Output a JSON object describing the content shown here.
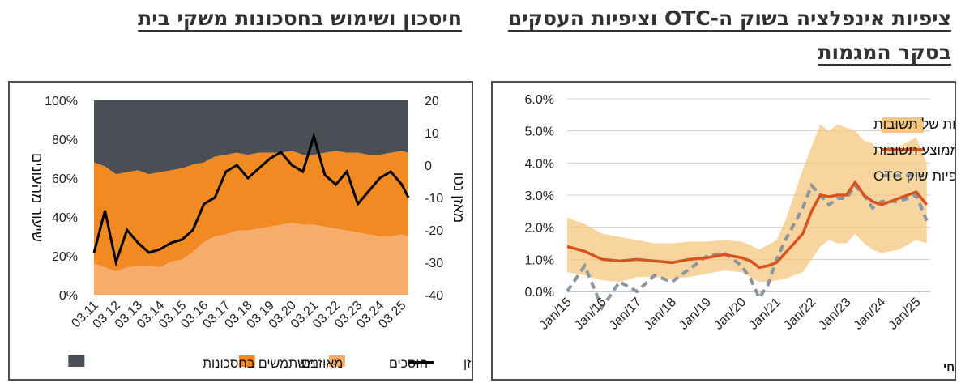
{
  "titles": {
    "right": "ציפיות אינפלציה בשוק ה-OTC וציפיות העסקים בסקר המגמות",
    "left": "חיסכון ושימוש בחסכונות משקי בית"
  },
  "colors": {
    "band": "#f5c77e",
    "band_dark": "#f0b050",
    "avg_line": "#d9531e",
    "otc_line": "#8c96a0",
    "users": "#4a4f55",
    "balanced": "#f28a24",
    "savers": "#f7ac6c",
    "balance_line": "#000000",
    "frame": "#4d4d4d"
  },
  "right_chart": {
    "source": "מקור: למ\"ס, בלומברג ועיבודי בנק מזרחי"
  },
  "left_chart": {},
  "chart_data": [
    {
      "type": "line",
      "y_ticks": [
        "6.0%",
        "5.0%",
        "4.0%",
        "3.0%",
        "2.0%",
        "1.0%",
        "0.0%"
      ],
      "ylim": [
        0,
        6
      ],
      "x_ticks": [
        "Jan/15",
        "Jan/16",
        "Jan/17",
        "Jan/18",
        "Jan/19",
        "Jan/20",
        "Jan/21",
        "Jan/22",
        "Jan/23",
        "Jan/24",
        "Jan/25"
      ],
      "xlim": [
        2015,
        2025.4
      ],
      "grid": true,
      "legend": "top-right",
      "legend_entries": [
        "ממוצע ± סטיית תקן אחת של תשובות",
        "ממוצע תשובות",
        "ציפיות שוק OTC"
      ],
      "x": [
        2015.0,
        2015.5,
        2016.0,
        2016.5,
        2017.0,
        2017.5,
        2018.0,
        2018.5,
        2019.0,
        2019.5,
        2020.0,
        2020.25,
        2020.5,
        2020.75,
        2021.0,
        2021.25,
        2021.5,
        2021.75,
        2022.0,
        2022.25,
        2022.5,
        2022.75,
        2023.0,
        2023.25,
        2023.5,
        2023.75,
        2024.0,
        2024.5,
        2025.0,
        2025.3
      ],
      "series": [
        {
          "name": "ממוצע תשובות",
          "role": "mean",
          "values": [
            1.4,
            1.25,
            1.0,
            0.95,
            1.0,
            0.95,
            0.9,
            1.0,
            1.05,
            1.15,
            1.05,
            0.95,
            0.75,
            0.8,
            0.9,
            1.2,
            1.5,
            1.8,
            2.5,
            3.0,
            2.95,
            3.0,
            3.0,
            3.4,
            3.0,
            2.8,
            2.7,
            2.9,
            3.1,
            2.7
          ]
        },
        {
          "name": "ממוצע ± סטיית תקן אחת של תשובות (upper)",
          "role": "upper",
          "values": [
            2.3,
            2.1,
            1.8,
            1.7,
            1.6,
            1.5,
            1.5,
            1.55,
            1.55,
            1.6,
            1.55,
            1.45,
            1.3,
            1.45,
            1.6,
            2.2,
            3.0,
            3.8,
            4.5,
            5.2,
            5.0,
            5.2,
            5.1,
            5.0,
            4.7,
            4.6,
            4.3,
            4.5,
            4.8,
            4.0
          ]
        },
        {
          "name": "ממוצע ± סטיית תקן אחת של תשובות (lower)",
          "role": "lower",
          "values": [
            0.6,
            0.5,
            0.35,
            0.3,
            0.45,
            0.45,
            0.4,
            0.45,
            0.55,
            0.65,
            0.6,
            0.45,
            0.3,
            0.3,
            0.35,
            0.4,
            0.5,
            0.6,
            1.0,
            1.4,
            1.6,
            1.5,
            1.5,
            1.8,
            1.5,
            1.3,
            1.2,
            1.3,
            1.6,
            1.5
          ]
        },
        {
          "name": "ציפיות שוק OTC",
          "role": "otc",
          "values": [
            0.0,
            0.8,
            -0.5,
            0.3,
            0.0,
            0.5,
            0.3,
            0.7,
            1.1,
            1.2,
            0.8,
            0.4,
            -0.2,
            0.2,
            1.0,
            1.6,
            2.1,
            2.6,
            3.3,
            3.0,
            2.7,
            2.9,
            2.9,
            3.3,
            3.0,
            2.6,
            2.8,
            2.8,
            3.0,
            2.2
          ]
        }
      ]
    },
    {
      "type": "area",
      "y_ticks_left": [
        "100%",
        "80%",
        "60%",
        "40%",
        "20%",
        "0%"
      ],
      "y_ticks_right": [
        "20",
        "10",
        "0",
        "-10",
        "-20",
        "-30",
        "-40"
      ],
      "ylim_left": [
        0,
        100
      ],
      "ylim_right": [
        -40,
        20
      ],
      "ylabel_left": "שיעור מהעונים",
      "ylabel_right": "מאזן נטו",
      "x_ticks": [
        "03.11",
        "03.12",
        "03.13",
        "03.14",
        "03.15",
        "03.16",
        "03.17",
        "03.18",
        "03.19",
        "03.20",
        "03.21",
        "03.22",
        "03.23",
        "03.24",
        "03.25"
      ],
      "xlim": [
        2011.0,
        2025.3
      ],
      "legend": "bottom",
      "legend_entries": [
        "מאזן",
        "חוסכים",
        "מאוזנים",
        "משתמשים בחסכונות"
      ],
      "x": [
        2011.0,
        2011.5,
        2012.0,
        2012.5,
        2013.0,
        2013.5,
        2014.0,
        2014.5,
        2015.0,
        2015.5,
        2016.0,
        2016.5,
        2017.0,
        2017.5,
        2018.0,
        2018.5,
        2019.0,
        2019.5,
        2020.0,
        2020.5,
        2021.0,
        2021.5,
        2022.0,
        2022.5,
        2023.0,
        2023.5,
        2024.0,
        2024.5,
        2025.0,
        2025.3
      ],
      "series": [
        {
          "name": "חוסכים",
          "axis": "left",
          "values": [
            16,
            14,
            12,
            14,
            15,
            15,
            14,
            17,
            18,
            22,
            27,
            30,
            31,
            33,
            33,
            34,
            35,
            36,
            37,
            36,
            36,
            35,
            34,
            33,
            32,
            31,
            30,
            30,
            31,
            30
          ]
        },
        {
          "name": "מאוזנים (cumulative top)",
          "axis": "left",
          "values": [
            68,
            66,
            62,
            63,
            64,
            62,
            63,
            64,
            65,
            67,
            68,
            71,
            72,
            73,
            72,
            73,
            73,
            73,
            74,
            72,
            72,
            73,
            74,
            73,
            73,
            72,
            72,
            73,
            74,
            73
          ]
        },
        {
          "name": "משתמשים בחסכונות (cumulative top)",
          "axis": "left",
          "values": [
            100,
            100,
            100,
            100,
            100,
            100,
            100,
            100,
            100,
            100,
            100,
            100,
            100,
            100,
            100,
            100,
            100,
            100,
            100,
            100,
            100,
            100,
            100,
            100,
            100,
            100,
            100,
            100,
            100,
            100
          ]
        },
        {
          "name": "מאזן",
          "axis": "right",
          "values": [
            -27,
            -14,
            -30,
            -20,
            -24,
            -27,
            -26,
            -24,
            -23,
            -20,
            -12,
            -10,
            -2,
            0,
            -4,
            -1,
            2,
            4,
            0,
            -2,
            9,
            -3,
            -6,
            -2,
            -12,
            -8,
            -4,
            -2,
            -6,
            -10
          ]
        }
      ]
    }
  ]
}
